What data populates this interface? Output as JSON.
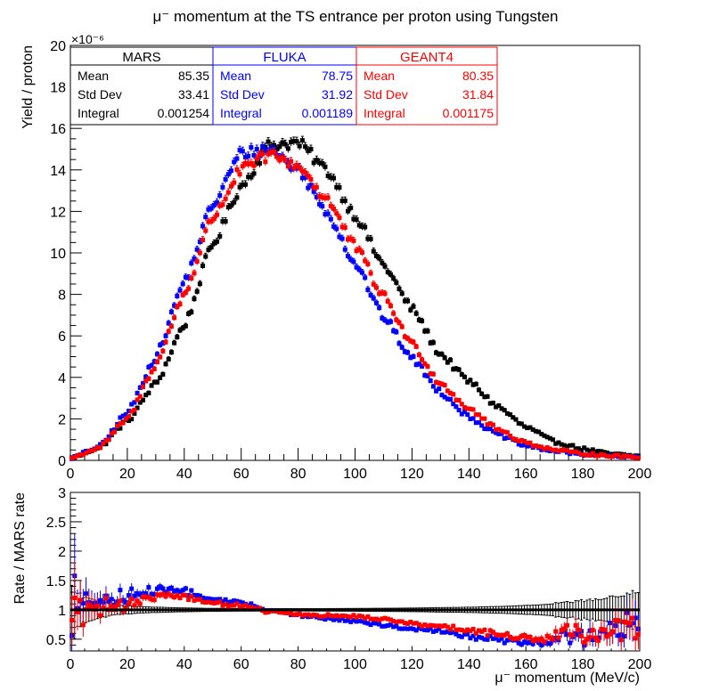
{
  "chart_data": {
    "type": "scatter",
    "title": "μ⁻ momentum at the TS entrance per proton using Tungsten",
    "exponent_label": "×10⁻⁶",
    "xlabel": "μ⁻ momentum (MeV/c)",
    "ylabel_top": "Yield / proton",
    "ylabel_bottom": "Rate / MARS rate",
    "xlim": [
      0,
      200
    ],
    "ylim_top": [
      0,
      20
    ],
    "ylim_bottom": [
      0.3,
      3
    ],
    "x_ticks": [
      "0",
      "20",
      "40",
      "60",
      "80",
      "100",
      "120",
      "140",
      "160",
      "180",
      "200"
    ],
    "y_ticks_top": [
      "0",
      "2",
      "4",
      "6",
      "8",
      "10",
      "12",
      "14",
      "16",
      "18",
      "20"
    ],
    "y_ticks_bottom": [
      "0.5",
      "1",
      "1.5",
      "2",
      "2.5",
      "3"
    ],
    "colors": {
      "MARS": "#000000",
      "FLUKA": "#0000ff",
      "GEANT4": "#ff0000"
    },
    "stats": [
      {
        "name": "MARS",
        "color": "#000000",
        "rows": [
          {
            "label": "Mean",
            "value": "85.35"
          },
          {
            "label": "Std Dev",
            "value": "33.41"
          },
          {
            "label": "Integral",
            "value": "0.001254"
          }
        ]
      },
      {
        "name": "FLUKA",
        "color": "#0000ff",
        "rows": [
          {
            "label": "Mean",
            "value": "78.75"
          },
          {
            "label": "Std Dev",
            "value": "31.92"
          },
          {
            "label": "Integral",
            "value": "0.001189"
          }
        ]
      },
      {
        "name": "GEANT4",
        "color": "#ff0000",
        "rows": [
          {
            "label": "Mean",
            "value": "80.35"
          },
          {
            "label": "Std Dev",
            "value": "31.84"
          },
          {
            "label": "Integral",
            "value": "0.001175"
          }
        ]
      }
    ],
    "bin_width": 1,
    "series": [
      {
        "name": "MARS",
        "color": "#000000",
        "knots_x": [
          0,
          10,
          20,
          30,
          40,
          50,
          60,
          70,
          80,
          90,
          100,
          110,
          120,
          130,
          140,
          150,
          160,
          170,
          180,
          190,
          200
        ],
        "knots_y": [
          0.1,
          0.6,
          1.9,
          3.7,
          6.5,
          10.4,
          13.2,
          15.2,
          15.3,
          14.0,
          11.8,
          9.4,
          7.3,
          5.1,
          3.8,
          2.6,
          1.6,
          0.9,
          0.55,
          0.3,
          0.2
        ]
      },
      {
        "name": "FLUKA",
        "color": "#0000ff",
        "knots_x": [
          0,
          10,
          20,
          30,
          40,
          50,
          60,
          70,
          80,
          90,
          100,
          110,
          120,
          130,
          140,
          150,
          160,
          170,
          180,
          190,
          200
        ],
        "knots_y": [
          0.1,
          0.65,
          2.3,
          5.0,
          8.6,
          12.3,
          14.8,
          15.0,
          14.0,
          12.0,
          9.5,
          6.9,
          4.9,
          3.3,
          2.1,
          1.25,
          0.7,
          0.45,
          0.3,
          0.2,
          0.15
        ]
      },
      {
        "name": "GEANT4",
        "color": "#ff0000",
        "knots_x": [
          0,
          10,
          20,
          30,
          40,
          50,
          60,
          70,
          80,
          90,
          100,
          110,
          120,
          130,
          140,
          150,
          160,
          170,
          180,
          190,
          200
        ],
        "knots_y": [
          0.1,
          0.6,
          2.0,
          4.6,
          8.0,
          11.7,
          14.0,
          14.7,
          14.2,
          12.6,
          10.3,
          7.9,
          5.6,
          3.7,
          2.5,
          1.5,
          0.85,
          0.5,
          0.32,
          0.22,
          0.15
        ]
      }
    ],
    "reference_line": 1
  }
}
